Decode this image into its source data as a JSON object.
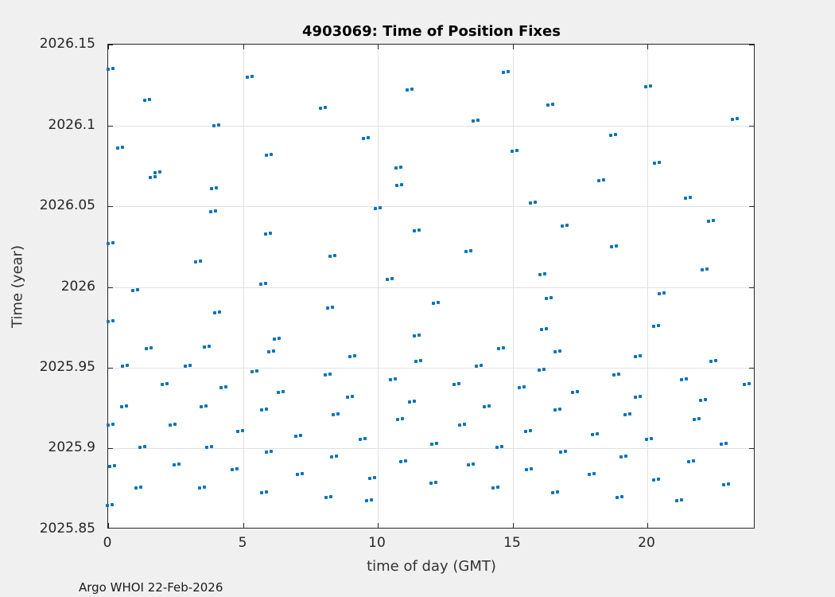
{
  "title": "4903069: Time of Position Fixes",
  "footer": "Argo WHOI 22-Feb-2026",
  "colors": {
    "marker": "#0072bd",
    "grid": "#e2e2e2",
    "axis": "#262626",
    "figure_bg": "#f0f0f0",
    "plot_bg": "#ffffff"
  },
  "chart_data": {
    "type": "scatter",
    "title": "4903069: Time of Position Fixes",
    "xlabel": "time of day (GMT)",
    "ylabel": "Time (year)",
    "xlim": [
      0,
      24
    ],
    "ylim": [
      2025.85,
      2026.15
    ],
    "grid": true,
    "xticks": [
      {
        "v": 0,
        "label": "0"
      },
      {
        "v": 5,
        "label": "5"
      },
      {
        "v": 10,
        "label": "10"
      },
      {
        "v": 15,
        "label": "15"
      },
      {
        "v": 20,
        "label": "20"
      }
    ],
    "yticks": [
      {
        "v": 2026.15,
        "label": "2026.15"
      },
      {
        "v": 2026.1,
        "label": "2026.1"
      },
      {
        "v": 2026.05,
        "label": "2026.05"
      },
      {
        "v": 2026.0,
        "label": "2026"
      },
      {
        "v": 2025.95,
        "label": "2025.95"
      },
      {
        "v": 2025.9,
        "label": "2025.9"
      },
      {
        "v": 2025.85,
        "label": "2025.85"
      }
    ],
    "marker": "paired-dots",
    "points": [
      [
        0.09,
        2026.135
      ],
      [
        1.43,
        2026.116
      ],
      [
        5.26,
        2026.13
      ],
      [
        7.95,
        2026.111
      ],
      [
        4.02,
        2026.1
      ],
      [
        0.44,
        2026.086
      ],
      [
        5.97,
        2026.082
      ],
      [
        1.82,
        2026.071
      ],
      [
        1.65,
        2026.068
      ],
      [
        3.93,
        2026.061
      ],
      [
        14.75,
        2026.133
      ],
      [
        11.18,
        2026.122
      ],
      [
        13.61,
        2026.103
      ],
      [
        9.54,
        2026.092
      ],
      [
        15.08,
        2026.084
      ],
      [
        10.77,
        2026.074
      ],
      [
        10.8,
        2026.063
      ],
      [
        10.0,
        2026.049
      ],
      [
        15.74,
        2026.052
      ],
      [
        20.03,
        2026.124
      ],
      [
        16.39,
        2026.113
      ],
      [
        23.22,
        2026.104
      ],
      [
        18.73,
        2026.094
      ],
      [
        20.35,
        2026.077
      ],
      [
        18.28,
        2026.066
      ],
      [
        21.5,
        2026.055
      ],
      [
        3.89,
        2026.047
      ],
      [
        5.94,
        2026.033
      ],
      [
        0.08,
        2026.027
      ],
      [
        3.32,
        2026.016
      ],
      [
        5.74,
        2026.002
      ],
      [
        1.01,
        2025.998
      ],
      [
        4.04,
        2025.984
      ],
      [
        0.09,
        2025.979
      ],
      [
        1.51,
        2025.962
      ],
      [
        3.65,
        2025.963
      ],
      [
        6.26,
        2025.968
      ],
      [
        6.05,
        2025.96
      ],
      [
        0.61,
        2025.951
      ],
      [
        2.95,
        2025.951
      ],
      [
        5.43,
        2025.948
      ],
      [
        11.45,
        2026.035
      ],
      [
        8.31,
        2026.019
      ],
      [
        13.35,
        2026.022
      ],
      [
        10.45,
        2026.005
      ],
      [
        8.23,
        2025.987
      ],
      [
        12.16,
        2025.99
      ],
      [
        11.43,
        2025.97
      ],
      [
        14.56,
        2025.962
      ],
      [
        9.05,
        2025.957
      ],
      [
        11.5,
        2025.954
      ],
      [
        13.75,
        2025.951
      ],
      [
        16.91,
        2026.038
      ],
      [
        22.36,
        2026.041
      ],
      [
        18.75,
        2026.025
      ],
      [
        16.11,
        2026.008
      ],
      [
        22.1,
        2026.011
      ],
      [
        20.53,
        2025.996
      ],
      [
        16.33,
        2025.993
      ],
      [
        20.31,
        2025.976
      ],
      [
        16.15,
        2025.974
      ],
      [
        16.65,
        2025.96
      ],
      [
        19.64,
        2025.957
      ],
      [
        22.43,
        2025.954
      ],
      [
        16.08,
        2025.949
      ],
      [
        8.13,
        2025.946
      ],
      [
        2.1,
        2025.94
      ],
      [
        4.28,
        2025.938
      ],
      [
        6.41,
        2025.935
      ],
      [
        0.59,
        2025.926
      ],
      [
        3.53,
        2025.926
      ],
      [
        5.78,
        2025.924
      ],
      [
        0.09,
        2025.915
      ],
      [
        2.38,
        2025.915
      ],
      [
        4.9,
        2025.911
      ],
      [
        7.06,
        2025.908
      ],
      [
        1.28,
        2025.901
      ],
      [
        3.74,
        2025.901
      ],
      [
        5.95,
        2025.898
      ],
      [
        0.15,
        2025.889
      ],
      [
        2.54,
        2025.89
      ],
      [
        4.68,
        2025.887
      ],
      [
        7.12,
        2025.884
      ],
      [
        1.11,
        2025.876
      ],
      [
        3.47,
        2025.876
      ],
      [
        5.78,
        2025.873
      ],
      [
        0.05,
        2025.865
      ],
      [
        10.56,
        2025.943
      ],
      [
        12.9,
        2025.94
      ],
      [
        15.34,
        2025.938
      ],
      [
        8.95,
        2025.932
      ],
      [
        11.25,
        2025.929
      ],
      [
        14.02,
        2025.926
      ],
      [
        8.43,
        2025.921
      ],
      [
        10.83,
        2025.918
      ],
      [
        13.12,
        2025.915
      ],
      [
        15.58,
        2025.911
      ],
      [
        9.44,
        2025.906
      ],
      [
        12.1,
        2025.903
      ],
      [
        14.52,
        2025.901
      ],
      [
        8.36,
        2025.895
      ],
      [
        10.93,
        2025.892
      ],
      [
        13.45,
        2025.89
      ],
      [
        15.59,
        2025.887
      ],
      [
        9.8,
        2025.882
      ],
      [
        12.06,
        2025.879
      ],
      [
        14.37,
        2025.876
      ],
      [
        8.17,
        2025.87
      ],
      [
        9.67,
        2025.868
      ],
      [
        18.84,
        2025.946
      ],
      [
        21.36,
        2025.943
      ],
      [
        23.67,
        2025.94
      ],
      [
        17.32,
        2025.935
      ],
      [
        19.63,
        2025.932
      ],
      [
        22.05,
        2025.93
      ],
      [
        16.65,
        2025.924
      ],
      [
        19.24,
        2025.921
      ],
      [
        21.82,
        2025.918
      ],
      [
        18.05,
        2025.909
      ],
      [
        20.06,
        2025.906
      ],
      [
        22.83,
        2025.903
      ],
      [
        16.87,
        2025.898
      ],
      [
        19.1,
        2025.895
      ],
      [
        21.61,
        2025.892
      ],
      [
        17.92,
        2025.884
      ],
      [
        20.32,
        2025.881
      ],
      [
        22.9,
        2025.878
      ],
      [
        16.57,
        2025.873
      ],
      [
        18.96,
        2025.87
      ],
      [
        21.18,
        2025.868
      ]
    ]
  }
}
